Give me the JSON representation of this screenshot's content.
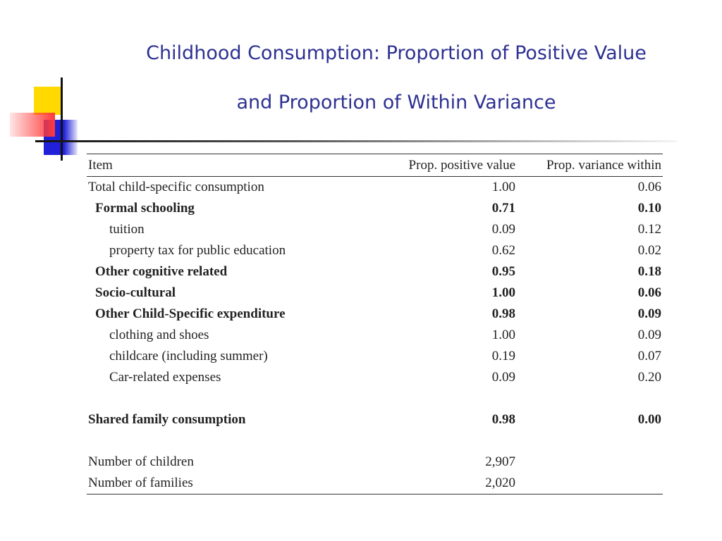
{
  "title": [
    "Childhood Consumption: Proportion of Positive Value",
    "and Proportion of Within Variance"
  ],
  "table": {
    "header": [
      "Item",
      "Prop. positive value",
      "Prop. variance within"
    ],
    "rows": [
      [
        "Total child-specific consumption",
        "1.00",
        "0.06"
      ],
      [
        "Formal schooling",
        "0.71",
        "0.10"
      ],
      [
        "tuition",
        "0.09",
        "0.12"
      ],
      [
        "property tax for public education",
        "0.62",
        "0.02"
      ],
      [
        "Other cognitive related",
        "0.95",
        "0.18"
      ],
      [
        "Socio-cultural",
        "1.00",
        "0.06"
      ],
      [
        "Other Child-Specific expenditure",
        "0.98",
        "0.09"
      ],
      [
        "clothing and shoes",
        "1.00",
        "0.09"
      ],
      [
        "childcare (including summer)",
        "0.19",
        "0.07"
      ],
      [
        "Car-related expenses",
        "0.09",
        "0.20"
      ],
      [
        "Shared family consumption",
        "0.98",
        "0.00"
      ],
      [
        "Number of children",
        "2,907"
      ],
      [
        "Number of families",
        "2,020"
      ]
    ]
  }
}
